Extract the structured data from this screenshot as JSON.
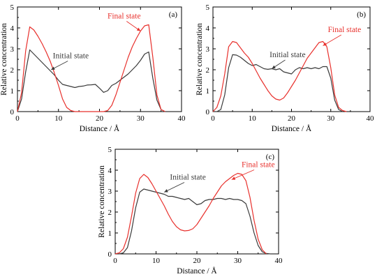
{
  "figure": {
    "colors": {
      "initial": "#3a3a3a",
      "final": "#e8302c",
      "axis": "#000000"
    }
  },
  "chart_data": [
    {
      "type": "line",
      "panel_label": "(a)",
      "xlabel": "Distance / Å",
      "ylabel": "Relative concentration",
      "xlim": [
        0,
        40
      ],
      "ylim": [
        0,
        5
      ],
      "xticks": [
        "0",
        "10",
        "20",
        "30",
        "40"
      ],
      "yticks": [
        "0",
        "1",
        "2",
        "3",
        "4",
        "5"
      ],
      "legend": "none",
      "grid": false,
      "annotations": [
        {
          "text": "Initial state",
          "series": "initial",
          "point": [
            8.2,
            2.0
          ],
          "label_at": [
            13,
            2.55
          ]
        },
        {
          "text": "Final state",
          "series": "final",
          "point": [
            30,
            3.85
          ],
          "label_at": [
            26,
            4.45
          ]
        }
      ],
      "series": [
        {
          "key": "initial",
          "x": [
            0,
            1,
            2,
            3,
            4,
            5,
            6,
            7,
            8,
            9,
            10,
            11,
            12,
            13,
            14,
            15,
            16,
            17,
            18,
            19,
            20,
            21,
            22,
            23,
            24,
            25,
            26,
            27,
            28,
            29,
            30,
            31,
            32,
            33,
            34,
            35,
            36
          ],
          "y": [
            0,
            0.6,
            1.9,
            2.95,
            2.75,
            2.55,
            2.35,
            2.15,
            1.95,
            1.75,
            1.5,
            1.3,
            1.25,
            1.2,
            1.15,
            1.2,
            1.22,
            1.27,
            1.28,
            1.3,
            1.12,
            0.92,
            1.0,
            1.25,
            1.35,
            1.5,
            1.65,
            1.8,
            2.0,
            2.2,
            2.45,
            2.75,
            2.85,
            1.6,
            0.55,
            0.1,
            0
          ]
        },
        {
          "key": "final",
          "x": [
            0,
            1,
            2,
            3,
            4,
            5,
            6,
            7,
            8,
            9,
            10,
            11,
            12,
            13,
            14,
            15,
            16,
            17,
            18,
            19,
            20,
            21,
            22,
            23,
            24,
            25,
            26,
            27,
            28,
            29,
            30,
            31,
            32,
            33,
            34,
            35,
            36
          ],
          "y": [
            0,
            0.9,
            2.9,
            4.05,
            3.9,
            3.6,
            3.25,
            2.85,
            2.4,
            1.85,
            1.25,
            0.6,
            0.2,
            0.05,
            0,
            0,
            0,
            0,
            0,
            0,
            0,
            0,
            0.05,
            0.3,
            0.8,
            1.4,
            2.0,
            2.6,
            3.1,
            3.5,
            3.85,
            4.1,
            4.15,
            2.6,
            0.8,
            0.1,
            0
          ]
        }
      ]
    },
    {
      "type": "line",
      "panel_label": "(b)",
      "xlabel": "Distance / Å",
      "ylabel": "Relative concentration",
      "xlim": [
        0,
        40
      ],
      "ylim": [
        0,
        5
      ],
      "xticks": [
        "0",
        "10",
        "20",
        "30",
        "40"
      ],
      "yticks": [
        "0",
        "1",
        "2",
        "3",
        "4",
        "5"
      ],
      "legend": "none",
      "grid": false,
      "annotations": [
        {
          "text": "Initial state",
          "series": "initial",
          "point": [
            15,
            2.05
          ],
          "label_at": [
            19,
            2.6
          ]
        },
        {
          "text": "Final state",
          "series": "final",
          "point": [
            28,
            3.15
          ],
          "label_at": [
            33.5,
            3.8
          ]
        }
      ],
      "series": [
        {
          "key": "initial",
          "x": [
            1,
            2,
            3,
            4,
            5,
            6,
            7,
            8,
            9,
            10,
            11,
            12,
            13,
            14,
            15,
            16,
            17,
            18,
            19,
            20,
            21,
            22,
            23,
            24,
            25,
            26,
            27,
            28,
            29,
            30,
            31,
            32,
            33
          ],
          "y": [
            0,
            0.1,
            0.8,
            2.1,
            2.72,
            2.7,
            2.6,
            2.45,
            2.3,
            2.2,
            2.25,
            2.15,
            2.05,
            2.02,
            2.05,
            2.0,
            2.05,
            1.9,
            1.85,
            1.8,
            2.0,
            2.1,
            2.05,
            2.1,
            2.05,
            2.1,
            2.05,
            2.15,
            2.15,
            1.6,
            0.55,
            0.1,
            0
          ]
        },
        {
          "key": "final",
          "x": [
            0,
            1,
            2,
            3,
            4,
            5,
            6,
            7,
            8,
            9,
            10,
            11,
            12,
            13,
            14,
            15,
            16,
            17,
            18,
            19,
            20,
            21,
            22,
            23,
            24,
            25,
            26,
            27,
            28,
            29,
            30,
            31,
            32,
            33,
            34
          ],
          "y": [
            0,
            0.2,
            0.75,
            1.8,
            3.1,
            3.35,
            3.3,
            3.05,
            2.8,
            2.6,
            2.3,
            1.95,
            1.6,
            1.3,
            1.0,
            0.75,
            0.6,
            0.55,
            0.65,
            0.9,
            1.2,
            1.5,
            1.85,
            2.2,
            2.55,
            2.8,
            3.05,
            3.3,
            3.35,
            3.1,
            2.1,
            0.8,
            0.2,
            0.05,
            0
          ]
        }
      ]
    },
    {
      "type": "line",
      "panel_label": "(c)",
      "xlabel": "Distance / Å",
      "ylabel": "Relative concentration",
      "xlim": [
        0,
        40
      ],
      "ylim": [
        0,
        5
      ],
      "xticks": [
        "0",
        "10",
        "20",
        "30",
        "40"
      ],
      "yticks": [
        "0",
        "1",
        "2",
        "3",
        "4",
        "5"
      ],
      "legend": "none",
      "grid": false,
      "annotations": [
        {
          "text": "Initial state",
          "series": "initial",
          "point": [
            12,
            2.95
          ],
          "label_at": [
            17.8,
            3.55
          ]
        },
        {
          "text": "Final state",
          "series": "final",
          "point": [
            28.5,
            3.55
          ],
          "label_at": [
            35,
            4.15
          ]
        }
      ],
      "series": [
        {
          "key": "initial",
          "x": [
            0,
            1,
            2,
            3,
            4,
            5,
            6,
            7,
            8,
            9,
            10,
            11,
            12,
            13,
            14,
            15,
            16,
            17,
            18,
            19,
            20,
            21,
            22,
            23,
            24,
            25,
            26,
            27,
            28,
            29,
            30,
            31,
            32,
            33,
            34,
            35,
            36,
            37,
            38
          ],
          "y": [
            0,
            0,
            0.05,
            0.3,
            1.1,
            2.2,
            2.95,
            3.1,
            3.05,
            3.0,
            2.95,
            2.9,
            2.85,
            2.75,
            2.75,
            2.7,
            2.65,
            2.6,
            2.65,
            2.5,
            2.35,
            2.4,
            2.55,
            2.6,
            2.6,
            2.65,
            2.65,
            2.6,
            2.65,
            2.6,
            2.6,
            2.55,
            2.4,
            1.8,
            1.0,
            0.4,
            0.1,
            0.02,
            0
          ]
        },
        {
          "key": "final",
          "x": [
            0,
            1,
            2,
            3,
            4,
            5,
            6,
            7,
            8,
            9,
            10,
            11,
            12,
            13,
            14,
            15,
            16,
            17,
            18,
            19,
            20,
            21,
            22,
            23,
            24,
            25,
            26,
            27,
            28,
            29,
            30,
            31,
            32,
            33,
            34,
            35,
            36,
            37
          ],
          "y": [
            0,
            0.05,
            0.25,
            0.8,
            1.8,
            2.9,
            3.6,
            3.8,
            3.65,
            3.35,
            3.0,
            2.65,
            2.3,
            1.9,
            1.55,
            1.3,
            1.15,
            1.1,
            1.12,
            1.2,
            1.4,
            1.7,
            2.0,
            2.3,
            2.65,
            2.95,
            3.25,
            3.45,
            3.6,
            3.75,
            3.85,
            3.8,
            3.5,
            2.7,
            1.6,
            0.7,
            0.2,
            0
          ]
        }
      ]
    }
  ]
}
